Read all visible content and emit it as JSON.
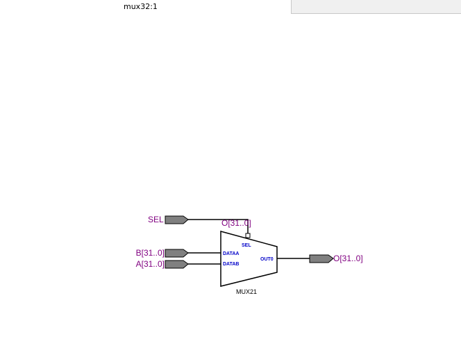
{
  "title": "mux32:1",
  "ports": {
    "sel": "SEL",
    "b": "B[31..0]",
    "a": "A[31..0]",
    "out": "O[31..0]"
  },
  "net_label": "O[31..0]",
  "mux": {
    "name": "MUX21",
    "pins": {
      "sel": "SEL",
      "dataa": "DATAA",
      "datab": "DATAB",
      "out": "OUT0"
    }
  },
  "colors": {
    "port_label": "#800080",
    "pin_label": "#0000c8",
    "port_fill": "#808080"
  }
}
